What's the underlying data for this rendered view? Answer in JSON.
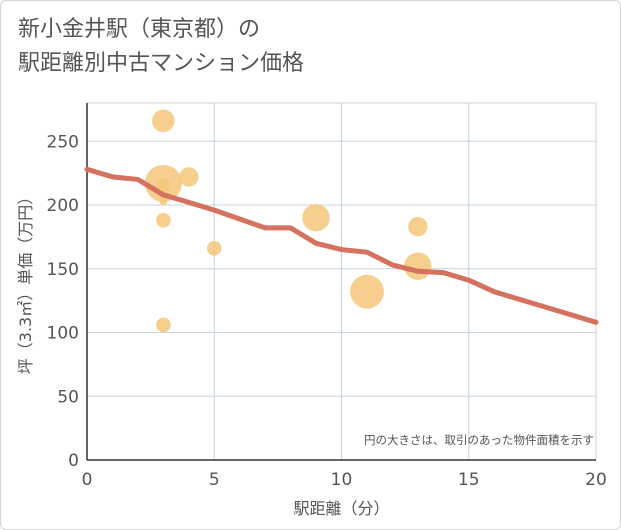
{
  "title": {
    "line1": "新小金井駅（東京都）の",
    "line2": "駅距離別中古マンション価格"
  },
  "colors": {
    "bubble": "#f5c77e",
    "trend": "#d4715f",
    "grid": "#c8d3dc",
    "text": "#555555"
  },
  "chart_data": {
    "type": "scatter",
    "xlabel": "駅距離（分）",
    "ylabel": "坪（3.3㎡）単価（万円）",
    "xlim": [
      0,
      20
    ],
    "ylim": [
      0,
      280
    ],
    "xticks": [
      0,
      5,
      10,
      15,
      20
    ],
    "yticks": [
      0,
      50,
      100,
      150,
      200,
      250
    ],
    "grid": true,
    "note": "円の大きさは、取引のあった物件面積を示す",
    "points": [
      {
        "x": 3,
        "y": 266,
        "size": 0.55
      },
      {
        "x": 3,
        "y": 217,
        "size": 1.0
      },
      {
        "x": 3,
        "y": 215,
        "size": 0.3
      },
      {
        "x": 3,
        "y": 203,
        "size": 0.1
      },
      {
        "x": 3,
        "y": 188,
        "size": 0.3
      },
      {
        "x": 3,
        "y": 106,
        "size": 0.3
      },
      {
        "x": 4,
        "y": 222,
        "size": 0.45
      },
      {
        "x": 5,
        "y": 166,
        "size": 0.3
      },
      {
        "x": 9,
        "y": 190,
        "size": 0.7
      },
      {
        "x": 11,
        "y": 132,
        "size": 0.9
      },
      {
        "x": 13,
        "y": 183,
        "size": 0.45
      },
      {
        "x": 13,
        "y": 152,
        "size": 0.7
      }
    ],
    "trend": {
      "name": "trend",
      "x": [
        0,
        1,
        2,
        3,
        4,
        5,
        6,
        7,
        8,
        9,
        10,
        11,
        12,
        13,
        14,
        15,
        16,
        17,
        18,
        19,
        20
      ],
      "y": [
        228,
        222,
        220,
        208,
        202,
        196,
        189,
        182,
        182,
        170,
        165,
        163,
        153,
        148,
        147,
        141,
        132,
        126,
        120,
        114,
        108
      ]
    }
  }
}
